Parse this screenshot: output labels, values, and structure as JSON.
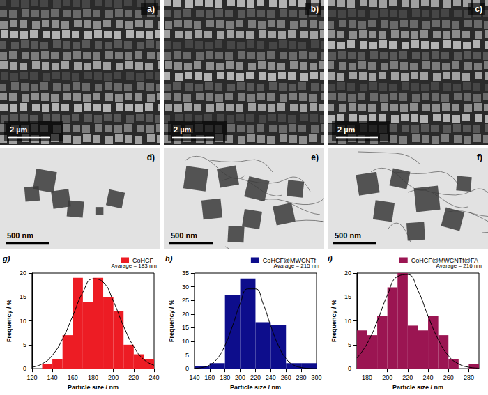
{
  "images": {
    "rows": [
      [
        {
          "label": "a)",
          "scale_bar": "2 µm"
        },
        {
          "label": "b)",
          "scale_bar": "2 µm"
        },
        {
          "label": "c)",
          "scale_bar": "2 µm"
        }
      ],
      [
        {
          "label": "d)",
          "scale_bar": "500 nm"
        },
        {
          "label": "e)",
          "scale_bar": "500 nm"
        },
        {
          "label": "f)",
          "scale_bar": "500 nm"
        }
      ]
    ]
  },
  "chart_data": [
    {
      "type": "histogram",
      "panel_label": "g)",
      "xlabel": "Particle size / nm",
      "ylabel": "Frequency / %",
      "xlim": [
        120,
        240
      ],
      "xticks": [
        120,
        140,
        160,
        180,
        200,
        220,
        240
      ],
      "ylim": [
        0,
        20
      ],
      "yticks": [
        0,
        5,
        10,
        15,
        20
      ],
      "legend": "top right",
      "annotation": "Avarage = 183 nm",
      "bins": [
        130,
        140,
        150,
        160,
        170,
        180,
        190,
        200,
        210,
        220,
        230,
        240
      ],
      "series": [
        {
          "name": "CoHCF",
          "type": "bar",
          "color": "#ed1c24",
          "values": [
            1,
            2,
            7,
            19,
            14,
            19,
            15,
            12,
            5,
            3,
            2
          ]
        },
        {
          "type": "line",
          "color": "#000000",
          "x": [
            120,
            130,
            140,
            150,
            160,
            170,
            180,
            190,
            200,
            210,
            220,
            230,
            240
          ],
          "values": [
            0.3,
            1.0,
            2.8,
            6.2,
            11.0,
            16.0,
            18.8,
            18.1,
            14.1,
            8.9,
            4.6,
            1.9,
            0.7
          ]
        }
      ]
    },
    {
      "type": "histogram",
      "panel_label": "h)",
      "xlabel": "Particle size / nm",
      "ylabel": "Frequency / %",
      "xlim": [
        140,
        300
      ],
      "xticks": [
        140,
        160,
        180,
        200,
        220,
        240,
        260,
        280,
        300
      ],
      "ylim": [
        0,
        35
      ],
      "yticks": [
        0,
        5,
        10,
        15,
        20,
        25,
        30,
        35
      ],
      "legend": "top right",
      "annotation": "Avarage = 215 nm",
      "bins": [
        140,
        160,
        180,
        200,
        220,
        240,
        260,
        280,
        300
      ],
      "series": [
        {
          "name": "CoHCF@MWCNTf",
          "type": "bar",
          "color": "#0d0d8c",
          "values": [
            1,
            2,
            27,
            33,
            17,
            16,
            2,
            2
          ]
        },
        {
          "type": "line",
          "color": "#000000",
          "x": [
            140,
            150,
            160,
            170,
            180,
            190,
            200,
            210,
            220,
            230,
            240,
            250,
            260,
            270,
            280,
            290,
            300
          ],
          "values": [
            0.1,
            0.4,
            1.3,
            3.7,
            8.5,
            15.7,
            23.8,
            29.2,
            29.2,
            23.8,
            15.7,
            8.5,
            3.7,
            1.3,
            0.4,
            0.1,
            0.0
          ]
        }
      ]
    },
    {
      "type": "histogram",
      "panel_label": "i)",
      "xlabel": "Particle size / nm",
      "ylabel": "Frequency / %",
      "xlim": [
        170,
        290
      ],
      "xticks": [
        180,
        200,
        220,
        240,
        260,
        280
      ],
      "ylim": [
        0,
        20
      ],
      "yticks": [
        0,
        5,
        10,
        15,
        20
      ],
      "legend": "top right",
      "annotation": "Avarage = 216 nm",
      "bins": [
        170,
        180,
        190,
        200,
        210,
        220,
        230,
        240,
        250,
        260,
        270,
        280,
        290
      ],
      "series": [
        {
          "name": "CoHCF@MWCNTf@FA",
          "type": "bar",
          "color": "#9b1552",
          "values": [
            8,
            7,
            11,
            17,
            20,
            9,
            8,
            11,
            7,
            2,
            0,
            1
          ]
        },
        {
          "type": "line",
          "color": "#000000",
          "x": [
            170,
            180,
            190,
            200,
            210,
            220,
            230,
            240,
            250,
            260,
            270,
            280,
            290
          ],
          "values": [
            2.2,
            5.2,
            9.9,
            15.4,
            19.3,
            19.7,
            16.4,
            11.0,
            6.1,
            2.7,
            1.0,
            0.3,
            0.1
          ]
        }
      ]
    }
  ]
}
